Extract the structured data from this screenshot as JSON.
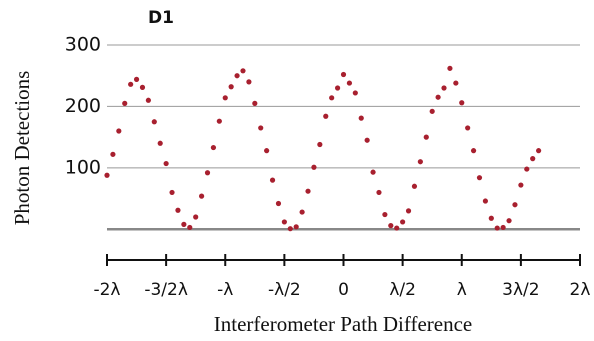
{
  "chart_data": {
    "type": "scatter",
    "title": "D1",
    "x_label": "Interferometer Path Difference",
    "y_label": "Photon Detections",
    "color": "#a8202f",
    "x": [
      -2.0,
      -1.95,
      -1.9,
      -1.85,
      -1.8,
      -1.75,
      -1.7,
      -1.65,
      -1.6,
      -1.55,
      -1.5,
      -1.45,
      -1.4,
      -1.35,
      -1.3,
      -1.25,
      -1.2,
      -1.15,
      -1.1,
      -1.05,
      -1.0,
      -0.95,
      -0.9,
      -0.85,
      -0.8,
      -0.75,
      -0.7,
      -0.65,
      -0.6,
      -0.55,
      -0.5,
      -0.45,
      -0.4,
      -0.35,
      -0.3,
      -0.25,
      -0.2,
      -0.15,
      -0.1,
      -0.05,
      0.0,
      0.05,
      0.1,
      0.15,
      0.2,
      0.25,
      0.3,
      0.35,
      0.4,
      0.45,
      0.5,
      0.55,
      0.6,
      0.65,
      0.7,
      0.75,
      0.8,
      0.85,
      0.9,
      0.95,
      1.0,
      1.05,
      1.1,
      1.15,
      1.2,
      1.25,
      1.3,
      1.35,
      1.4,
      1.45,
      1.5,
      1.55,
      1.6,
      1.65
    ],
    "values": [
      88,
      122,
      160,
      205,
      236,
      244,
      231,
      210,
      175,
      140,
      107,
      60,
      31,
      8,
      3,
      20,
      54,
      92,
      133,
      176,
      214,
      232,
      250,
      258,
      240,
      205,
      165,
      128,
      80,
      42,
      12,
      1,
      4,
      28,
      62,
      101,
      138,
      184,
      214,
      230,
      252,
      238,
      222,
      181,
      145,
      93,
      60,
      24,
      6,
      2,
      12,
      30,
      70,
      110,
      150,
      192,
      215,
      230,
      262,
      238,
      206,
      165,
      128,
      84,
      46,
      18,
      2,
      3,
      14,
      40,
      72,
      98,
      115,
      128
    ],
    "xlim": [
      -2,
      2
    ],
    "xticks": [
      {
        "value": -2,
        "label": "-2λ"
      },
      {
        "value": -1.5,
        "label": "-3/2λ"
      },
      {
        "value": -1,
        "label": "-λ"
      },
      {
        "value": -0.5,
        "label": "-λ/2"
      },
      0,
      {
        "value": 0.5,
        "label": "λ/2"
      },
      {
        "value": 1,
        "label": "λ"
      },
      {
        "value": 1.5,
        "label": "3λ/2"
      },
      {
        "value": 2,
        "label": "2λ"
      }
    ],
    "ylim": [
      -50,
      300
    ],
    "yticks": [
      100,
      200,
      300
    ],
    "grid": true
  }
}
